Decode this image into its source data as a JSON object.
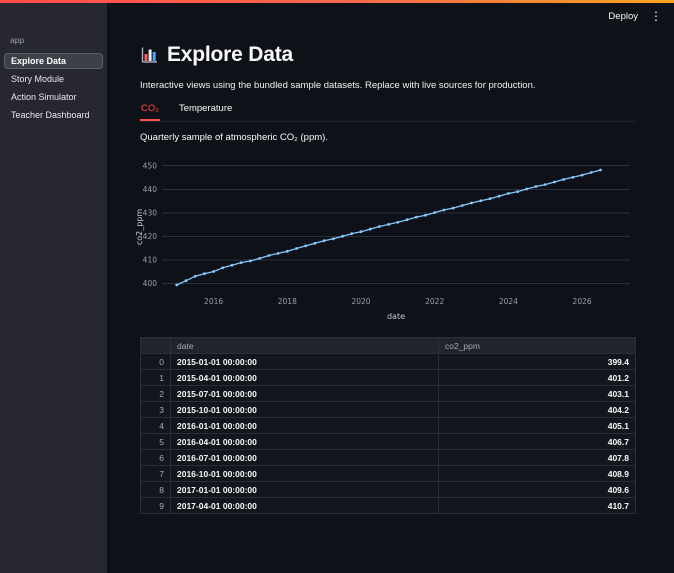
{
  "header": {
    "deploy_label": "Deploy",
    "menu_glyph": "⋮"
  },
  "sidebar": {
    "app_label": "app",
    "items": [
      {
        "label": "Explore Data",
        "active": true
      },
      {
        "label": "Story Module",
        "active": false
      },
      {
        "label": "Action Simulator",
        "active": false
      },
      {
        "label": "Teacher Dashboard",
        "active": false
      }
    ]
  },
  "main": {
    "title": "Explore Data",
    "intro": "Interactive views using the bundled sample datasets. Replace with live sources for production.",
    "tabs": [
      {
        "label": "CO₂",
        "active": true
      },
      {
        "label": "Temperature",
        "active": false
      }
    ],
    "caption": "Quarterly sample of atmospheric CO₂ (ppm)."
  },
  "chart_data": {
    "type": "line",
    "title": "",
    "xlabel": "date",
    "ylabel": "co2_ppm",
    "x_ticks": [
      2016,
      2018,
      2020,
      2022,
      2024,
      2026
    ],
    "y_ticks": [
      400,
      410,
      420,
      430,
      440,
      450
    ],
    "xlim": [
      2014.6,
      2027.3
    ],
    "ylim": [
      396,
      452
    ],
    "grid": "horizontal",
    "legend": "none",
    "line_color": "#83c9ff",
    "series": [
      {
        "name": "co2_ppm",
        "x": [
          2015.0,
          2015.25,
          2015.5,
          2015.75,
          2016.0,
          2016.25,
          2016.5,
          2016.75,
          2017.0,
          2017.25,
          2017.5,
          2017.75,
          2018.0,
          2018.25,
          2018.5,
          2018.75,
          2019.0,
          2019.25,
          2019.5,
          2019.75,
          2020.0,
          2020.25,
          2020.5,
          2020.75,
          2021.0,
          2021.25,
          2021.5,
          2021.75,
          2022.0,
          2022.25,
          2022.5,
          2022.75,
          2023.0,
          2023.25,
          2023.5,
          2023.75,
          2024.0,
          2024.25,
          2024.5,
          2024.75,
          2025.0,
          2025.25,
          2025.5,
          2025.75,
          2026.0,
          2026.25,
          2026.5
        ],
        "y": [
          399.4,
          401.2,
          403.1,
          404.2,
          405.1,
          406.7,
          407.8,
          408.9,
          409.6,
          410.7,
          411.9,
          412.8,
          413.7,
          414.9,
          416.0,
          417.1,
          418.2,
          419.0,
          420.1,
          421.2,
          422.0,
          423.1,
          424.2,
          425.1,
          426.0,
          427.1,
          428.2,
          429.0,
          430.1,
          431.2,
          432.0,
          433.1,
          434.2,
          435.1,
          436.0,
          437.1,
          438.2,
          439.0,
          440.1,
          441.2,
          442.0,
          443.1,
          444.2,
          445.1,
          446.0,
          447.1,
          448.2
        ]
      }
    ]
  },
  "table": {
    "columns": [
      "",
      "date",
      "co2_ppm"
    ],
    "rows": [
      [
        "0",
        "2015-01-01 00:00:00",
        "399.4"
      ],
      [
        "1",
        "2015-04-01 00:00:00",
        "401.2"
      ],
      [
        "2",
        "2015-07-01 00:00:00",
        "403.1"
      ],
      [
        "3",
        "2015-10-01 00:00:00",
        "404.2"
      ],
      [
        "4",
        "2016-01-01 00:00:00",
        "405.1"
      ],
      [
        "5",
        "2016-04-01 00:00:00",
        "406.7"
      ],
      [
        "6",
        "2016-07-01 00:00:00",
        "407.8"
      ],
      [
        "7",
        "2016-10-01 00:00:00",
        "408.9"
      ],
      [
        "8",
        "2017-01-01 00:00:00",
        "409.6"
      ],
      [
        "9",
        "2017-04-01 00:00:00",
        "410.7"
      ]
    ]
  },
  "colors": {
    "accent": "#ff4b4b",
    "line": "#83c9ff",
    "page_bg": "#0e1117",
    "sidebar_bg": "#262730"
  }
}
